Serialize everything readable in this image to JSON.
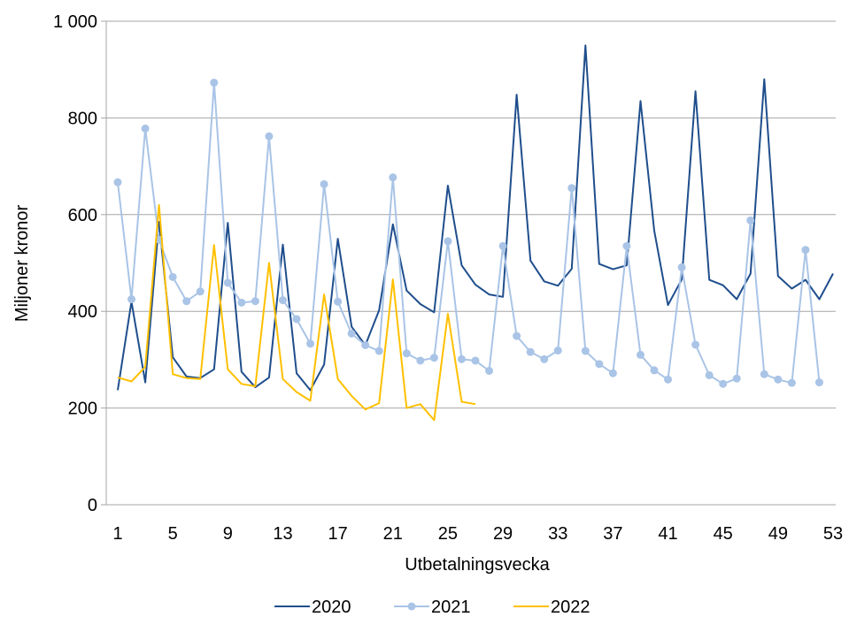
{
  "chart_data": {
    "type": "line",
    "xlabel": "Utbetalningsvecka",
    "ylabel": "Miljoner kronor",
    "ylim": [
      0,
      1000
    ],
    "xlim": [
      1,
      53
    ],
    "y_ticks": [
      {
        "value": 0,
        "label": "0"
      },
      {
        "value": 200,
        "label": "200"
      },
      {
        "value": 400,
        "label": "400"
      },
      {
        "value": 600,
        "label": "600"
      },
      {
        "value": 800,
        "label": "800"
      },
      {
        "value": 1000,
        "label": "1 000"
      }
    ],
    "x_ticks": [
      {
        "value": 1,
        "label": "1"
      },
      {
        "value": 5,
        "label": "5"
      },
      {
        "value": 9,
        "label": "9"
      },
      {
        "value": 13,
        "label": "13"
      },
      {
        "value": 17,
        "label": "17"
      },
      {
        "value": 21,
        "label": "21"
      },
      {
        "value": 25,
        "label": "25"
      },
      {
        "value": 29,
        "label": "29"
      },
      {
        "value": 33,
        "label": "33"
      },
      {
        "value": 37,
        "label": "37"
      },
      {
        "value": 41,
        "label": "41"
      },
      {
        "value": 45,
        "label": "45"
      },
      {
        "value": 49,
        "label": "49"
      },
      {
        "value": 53,
        "label": "53"
      }
    ],
    "grid": "horizontal",
    "legend_position": "bottom",
    "series": [
      {
        "name": "2020",
        "color": "#1f4e8c",
        "markers": false,
        "x": [
          1,
          2,
          3,
          4,
          5,
          6,
          7,
          8,
          9,
          10,
          11,
          12,
          13,
          14,
          15,
          16,
          17,
          18,
          19,
          20,
          21,
          22,
          23,
          24,
          25,
          26,
          27,
          28,
          29,
          30,
          31,
          32,
          33,
          34,
          35,
          36,
          37,
          38,
          39,
          40,
          41,
          42,
          43,
          44,
          45,
          46,
          47,
          48,
          49,
          50,
          51,
          52,
          53
        ],
        "values": [
          237,
          420,
          253,
          585,
          305,
          265,
          262,
          280,
          583,
          275,
          243,
          263,
          538,
          272,
          237,
          290,
          550,
          368,
          330,
          402,
          580,
          443,
          415,
          398,
          660,
          495,
          455,
          435,
          430,
          848,
          505,
          462,
          453,
          488,
          950,
          498,
          487,
          495,
          835,
          567,
          413,
          466,
          855,
          465,
          454,
          425,
          478,
          880,
          473,
          447,
          465,
          425,
          478
        ]
      },
      {
        "name": "2021",
        "color": "#a9c4e6",
        "markers": true,
        "x": [
          1,
          2,
          3,
          4,
          5,
          6,
          7,
          8,
          9,
          10,
          11,
          12,
          13,
          14,
          15,
          16,
          17,
          18,
          19,
          20,
          21,
          22,
          23,
          24,
          25,
          26,
          27,
          28,
          29,
          30,
          31,
          32,
          33,
          34,
          35,
          36,
          37,
          38,
          39,
          40,
          41,
          42,
          43,
          44,
          45,
          46,
          47,
          48,
          49,
          50,
          51,
          52
        ],
        "values": [
          667,
          425,
          778,
          548,
          471,
          421,
          441,
          873,
          459,
          418,
          421,
          762,
          423,
          384,
          333,
          663,
          420,
          354,
          330,
          318,
          677,
          313,
          298,
          304,
          545,
          301,
          298,
          277,
          535,
          349,
          316,
          301,
          319,
          655,
          318,
          291,
          272,
          535,
          310,
          278,
          259,
          491,
          331,
          268,
          250,
          261,
          588,
          270,
          259,
          252,
          527,
          253
        ]
      },
      {
        "name": "2022",
        "color": "#ffc000",
        "markers": false,
        "x": [
          1,
          2,
          3,
          4,
          5,
          6,
          7,
          8,
          9,
          10,
          11,
          12,
          13,
          14,
          15,
          16,
          17,
          18,
          19,
          20,
          21,
          22,
          23,
          24,
          25,
          26,
          27
        ],
        "values": [
          263,
          255,
          285,
          620,
          270,
          262,
          260,
          537,
          280,
          250,
          245,
          500,
          260,
          233,
          215,
          435,
          260,
          225,
          197,
          210,
          466,
          200,
          208,
          175,
          395,
          213,
          208
        ]
      }
    ]
  }
}
